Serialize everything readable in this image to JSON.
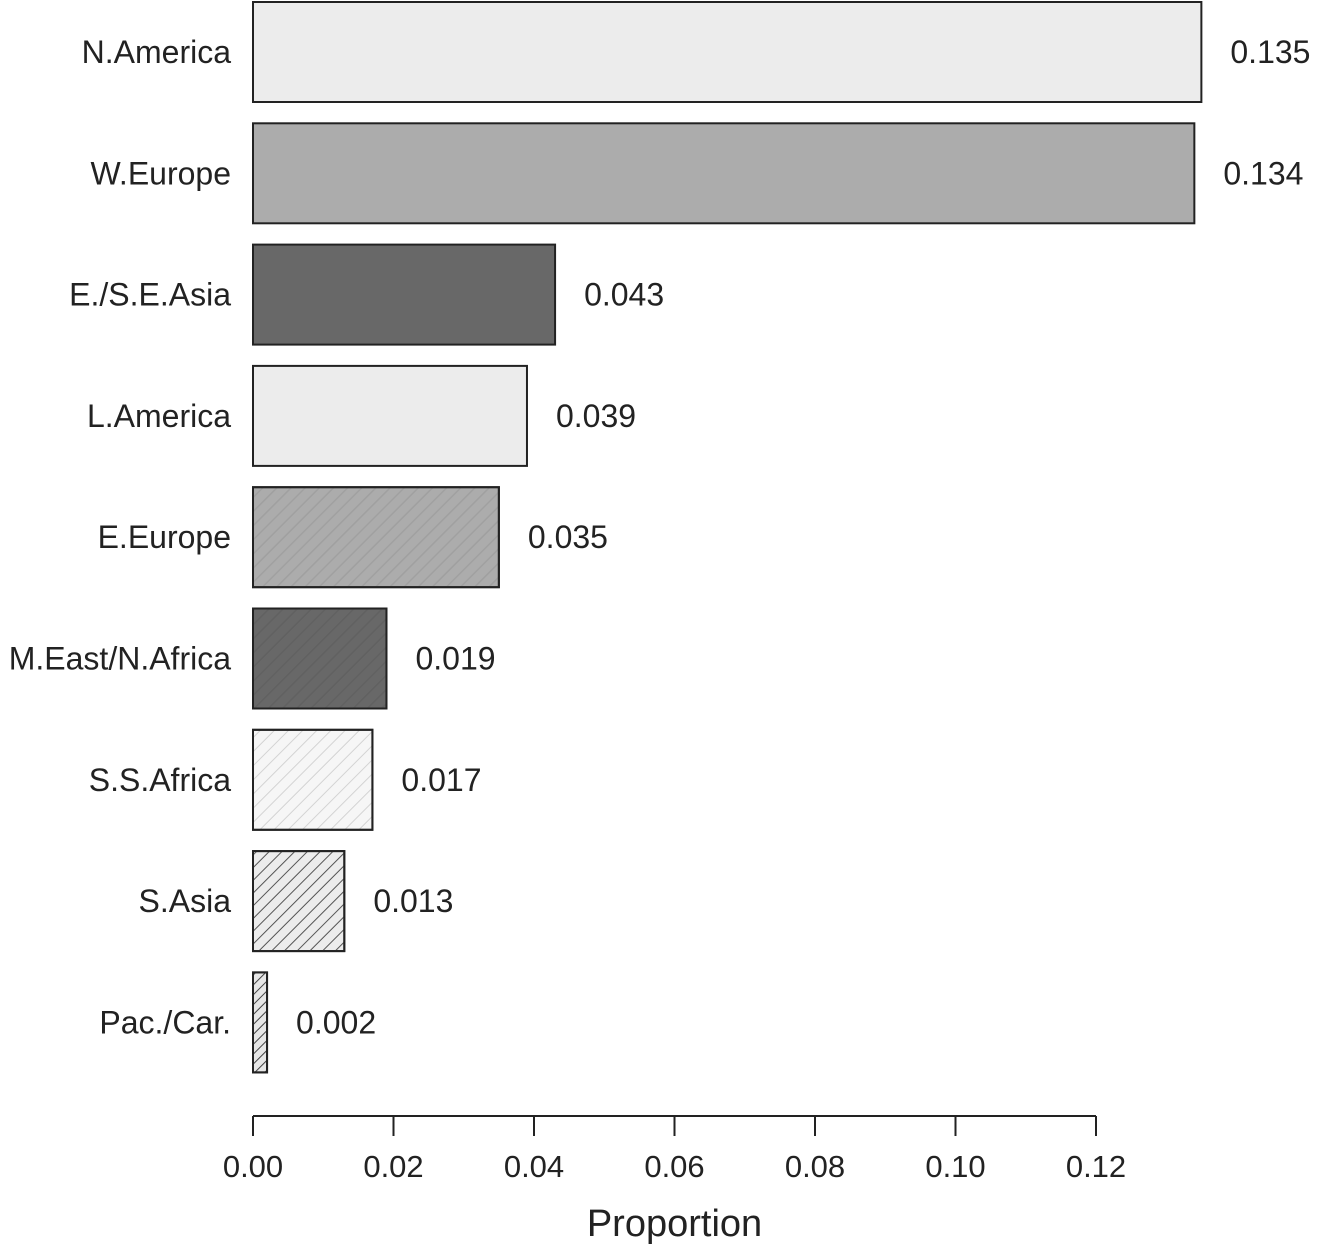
{
  "chart_data": {
    "type": "bar",
    "orientation": "horizontal",
    "title": "",
    "xlabel": "Proportion",
    "ylabel": "",
    "xlim": [
      0,
      0.12
    ],
    "x_ticks": [
      0.0,
      0.02,
      0.04,
      0.06,
      0.08,
      0.1,
      0.12
    ],
    "x_tick_labels": [
      "0.00",
      "0.02",
      "0.04",
      "0.06",
      "0.08",
      "0.10",
      "0.12"
    ],
    "grid": false,
    "legend": "none",
    "categories": [
      "N.America",
      "W.Europe",
      "E./S.E.Asia",
      "L.America",
      "E.Europe",
      "M.East/N.Africa",
      "S.S.Africa",
      "S.Asia",
      "Pac./Car."
    ],
    "values": [
      0.135,
      0.134,
      0.043,
      0.039,
      0.035,
      0.019,
      0.017,
      0.013,
      0.002
    ],
    "value_labels": [
      "0.135",
      "0.134",
      "0.043",
      "0.039",
      "0.035",
      "0.019",
      "0.017",
      "0.013",
      "0.002"
    ],
    "fills": [
      {
        "color": "#ececec",
        "hatch": "none"
      },
      {
        "color": "#acacac",
        "hatch": "none"
      },
      {
        "color": "#686868",
        "hatch": "none"
      },
      {
        "color": "#ececec",
        "hatch": "none"
      },
      {
        "color": "#acacac",
        "hatch": "faint"
      },
      {
        "color": "#686868",
        "hatch": "faint"
      },
      {
        "color": "#f6f6f6",
        "hatch": "light"
      },
      {
        "color": "#ececec",
        "hatch": "medium"
      },
      {
        "color": "#e6e6e6",
        "hatch": "dense"
      }
    ]
  }
}
